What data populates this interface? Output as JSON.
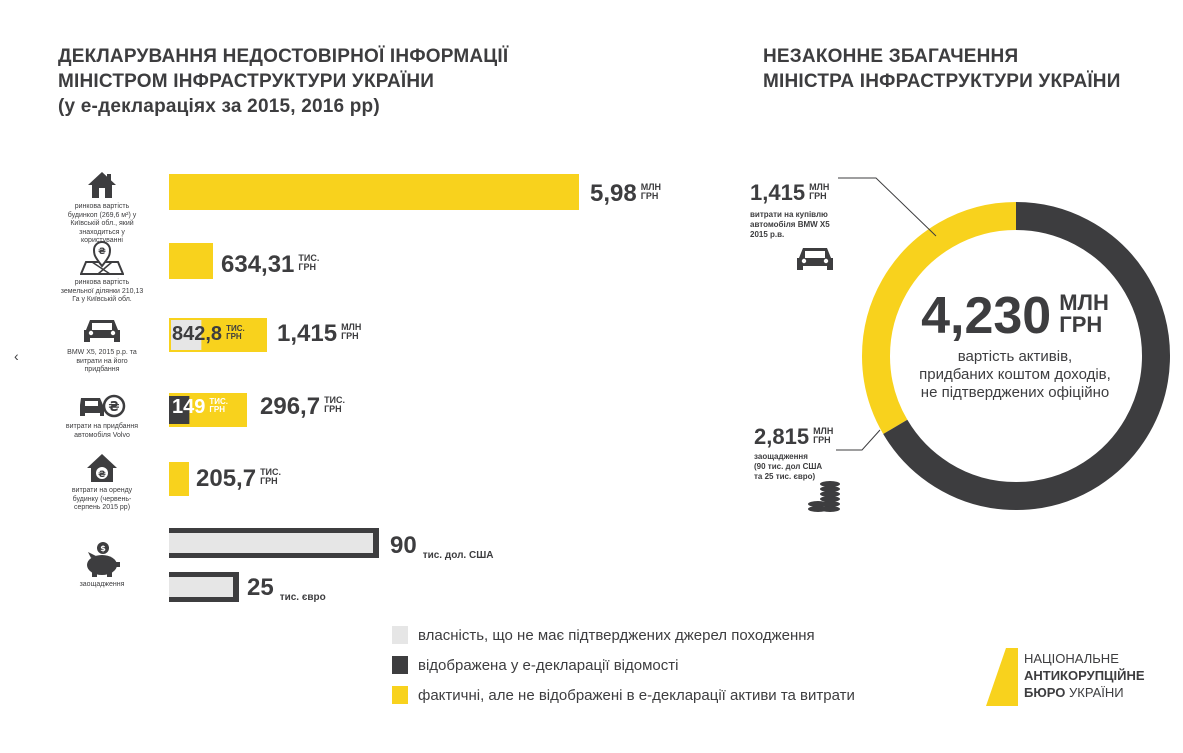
{
  "left_title": {
    "line1": "ДЕКЛАРУВАННЯ НЕДОСТОВІРНОЇ ІНФОРМАЦІЇ",
    "line2": "МІНІСТРОМ ІНФРАСТРУКТУРИ УКРАЇНИ",
    "line3": "(у е-деклараціях за 2015, 2016 рр)"
  },
  "right_title": {
    "line1": "НЕЗАКОННЕ ЗБАГАЧЕННЯ",
    "line2": "МІНІСТРА ІНФРАСТРУКТУРИ УКРАЇНИ"
  },
  "side_arrow": "‹",
  "colors": {
    "yellow": "#f8d21d",
    "dark": "#3d3d3f",
    "light": "#e6e6e6"
  },
  "rows": [
    {
      "icon": "house-icon",
      "label": "ринкова вартість будинкоп (269,6 м²) у Київській обл., який знаходиться у користуванні",
      "value_text": "5,98",
      "unit_top": "МЛН",
      "unit_bottom": "ГРН"
    },
    {
      "icon": "land-pin-icon",
      "label": "ринкова вартість земельної ділянки 210,13 Га у Київській обл.",
      "value_text": "634,31",
      "unit_top": "ТИС.",
      "unit_bottom": "ГРН"
    },
    {
      "icon": "car-icon",
      "label": "BMW X5, 2015 р.р. та витрати на його придбання",
      "inner_text": "842,8",
      "inner_unit_top": "ТИС.",
      "inner_unit_bottom": "ГРН",
      "value_text": "1,415",
      "unit_top": "МЛН",
      "unit_bottom": "ГРН"
    },
    {
      "icon": "car-money-icon",
      "label": "витрати на придбання автомобіля Volvo",
      "inner_text": "149",
      "inner_unit_top": "ТИС.",
      "inner_unit_bottom": "ГРН",
      "value_text": "296,7",
      "unit_top": "ТИС.",
      "unit_bottom": "ГРН"
    },
    {
      "icon": "house-money-icon",
      "label": "витрати на оренду будинку (червень-серпень 2015 рр)",
      "value_text": "205,7",
      "unit_top": "ТИС.",
      "unit_bottom": "ГРН"
    },
    {
      "icon": "piggy-bank-icon",
      "label": "заощадження",
      "value_text": "90",
      "unit_line": "тис. дол. США",
      "value_text_2": "25",
      "unit_line_2": "тис. євро"
    }
  ],
  "chart_data": {
    "type": "bar",
    "categories": [
      "ринкова вартість будинкоп",
      "ринкова вартість земельної ділянки",
      "BMW X5",
      "витрати на придбання автомобіля Volvo",
      "витрати на оренду будинку",
      "заощадження (USD)",
      "заощадження (EUR)"
    ],
    "series": [
      {
        "name": "власність, що не має підтверджених джерел походження",
        "values": [
          0,
          0,
          0,
          0,
          0,
          90,
          25
        ]
      },
      {
        "name": "відображена у е-декларації відомості",
        "values": [
          0,
          0,
          842.8,
          149,
          0,
          0,
          0
        ]
      },
      {
        "name": "фактичні, але не відображені в е-декларації активи та витрати",
        "values": [
          5980,
          634.31,
          1415,
          296.7,
          205.7,
          0,
          0
        ]
      }
    ]
  },
  "donut": {
    "total_value": "4,230",
    "total_unit_top": "МЛН",
    "total_unit_bottom": "ГРН",
    "desc_line1": "вартість активів,",
    "desc_line2": "придбаних коштом доходів,",
    "desc_line3": "не підтверджених офіційно",
    "chart_data": {
      "type": "pie",
      "categories": [
        "витрати на купівлю автомобіля BMW X5 2015 р.в.",
        "заощадження (90 тис. дол США та 25 тис. євро)"
      ],
      "values": [
        1.415,
        2.815
      ]
    }
  },
  "car_segment": {
    "value_text": "1,415",
    "unit_top": "МЛН",
    "unit_bottom": "ГРН",
    "label_line1": "витрати на купівлю",
    "label_line2": "автомобіля BMW X5",
    "label_line3": "2015 р.в."
  },
  "savings_segment": {
    "value_text": "2,815",
    "unit_top": "МЛН",
    "unit_bottom": "ГРН",
    "label_line1": "заощадження",
    "label_line2": "(90 тис. дол США",
    "label_line3": "та 25 тис. євро)"
  },
  "legend": [
    {
      "color": "#e6e6e6",
      "text": "власність, що не має підтверджених джерел походження"
    },
    {
      "color": "#3d3d3f",
      "text": "відображена у е-декларації відомості"
    },
    {
      "color": "#f8d21d",
      "text": "фактичні, але не відображені в е-декларації активи та витрати"
    }
  ],
  "logo": {
    "line1": "НАЦІОНАЛЬНЕ",
    "line2": "АНТИКОРУПЦІЙНЕ",
    "line3a": "БЮРО",
    "line3b": "УКРАЇНИ"
  }
}
